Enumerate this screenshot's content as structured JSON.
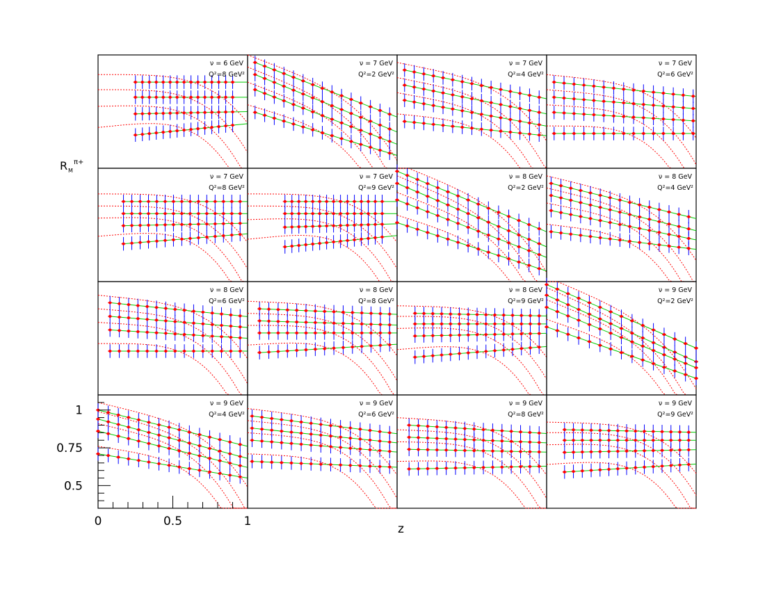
{
  "figure": {
    "ylabel": "R",
    "ylabel_sub": "M",
    "ylabel_sup": "π+",
    "xlabel": "z",
    "x_ticks": [
      "0",
      "0.5",
      "1"
    ],
    "y_ticks": [
      "1",
      "0.75",
      "0.5"
    ],
    "colors": {
      "data_point": "#ff0000",
      "error_bar": "#0000ff",
      "fit_curve": "#00cc00",
      "model_curve": "#ff0000",
      "frame": "#000000"
    }
  },
  "chart_data": {
    "type": "scatter",
    "description_of_grid": "4x4 panels of hadron multiplicity ratio vs z, one panel per (nu, Q^2) bin; four data sets per panel with green fit lines and red dotted model curves",
    "xlim": [
      0,
      1
    ],
    "ylim": [
      0.35,
      1.1
    ],
    "panels": [
      {
        "nu": "ν = 6  GeV",
        "q2": "Q²=8  GeV²",
        "zmin": 0.25,
        "zmax": 0.9,
        "start": [
          0.92,
          0.82,
          0.71,
          0.57
        ],
        "slope": [
          0.0,
          0.0,
          0.02,
          0.1
        ]
      },
      {
        "nu": "ν = 7  GeV",
        "q2": "Q²=2  GeV²",
        "zmin": 0.05,
        "zmax": 0.95,
        "start": [
          1.05,
          0.97,
          0.87,
          0.72
        ],
        "slope": [
          -0.38,
          -0.4,
          -0.38,
          -0.3
        ]
      },
      {
        "nu": "ν = 7  GeV",
        "q2": "Q²=4  GeV²",
        "zmin": 0.05,
        "zmax": 0.95,
        "start": [
          1.0,
          0.9,
          0.8,
          0.66
        ],
        "slope": [
          -0.2,
          -0.2,
          -0.18,
          -0.1
        ]
      },
      {
        "nu": "ν = 7  GeV",
        "q2": "Q²=6  GeV²",
        "zmin": 0.05,
        "zmax": 0.98,
        "start": [
          0.92,
          0.82,
          0.72,
          0.58
        ],
        "slope": [
          -0.1,
          -0.08,
          -0.06,
          0.0
        ]
      },
      {
        "nu": "ν = 7  GeV",
        "q2": "Q²=8  GeV²",
        "zmin": 0.17,
        "zmax": 0.95,
        "start": [
          0.88,
          0.8,
          0.72,
          0.6
        ],
        "slope": [
          0.0,
          0.0,
          0.02,
          0.08
        ]
      },
      {
        "nu": "ν = 7  GeV",
        "q2": "Q²=9  GeV²",
        "zmin": 0.25,
        "zmax": 0.9,
        "start": [
          0.88,
          0.8,
          0.71,
          0.58
        ],
        "slope": [
          0.0,
          0.0,
          0.03,
          0.1
        ]
      },
      {
        "nu": "ν = 8  GeV",
        "q2": "Q²=2  GeV²",
        "zmin": 0.0,
        "zmax": 0.95,
        "start": [
          1.08,
          1.0,
          0.89,
          0.74
        ],
        "slope": [
          -0.4,
          -0.42,
          -0.38,
          -0.32
        ]
      },
      {
        "nu": "ν = 8  GeV",
        "q2": "Q²=4  GeV²",
        "zmin": 0.03,
        "zmax": 0.95,
        "start": [
          1.0,
          0.92,
          0.82,
          0.68
        ],
        "slope": [
          -0.24,
          -0.24,
          -0.2,
          -0.12
        ]
      },
      {
        "nu": "ν = 8  GeV",
        "q2": "Q²=6  GeV²",
        "zmin": 0.08,
        "zmax": 0.95,
        "start": [
          0.96,
          0.87,
          0.78,
          0.64
        ],
        "slope": [
          -0.1,
          -0.08,
          -0.06,
          0.0
        ]
      },
      {
        "nu": "ν = 8  GeV",
        "q2": "Q²=8  GeV²",
        "zmin": 0.08,
        "zmax": 0.95,
        "start": [
          0.92,
          0.84,
          0.76,
          0.63
        ],
        "slope": [
          -0.04,
          -0.03,
          0.0,
          0.06
        ]
      },
      {
        "nu": "ν = 8  GeV",
        "q2": "Q²=9  GeV²",
        "zmin": 0.12,
        "zmax": 0.95,
        "start": [
          0.89,
          0.82,
          0.74,
          0.6
        ],
        "slope": [
          -0.02,
          0.0,
          0.02,
          0.08
        ]
      },
      {
        "nu": "ν = 9  GeV",
        "q2": "Q²=2  GeV²",
        "zmin": 0.0,
        "zmax": 1.0,
        "start": [
          1.08,
          1.01,
          0.93,
          0.8
        ],
        "slope": [
          -0.42,
          -0.44,
          -0.4,
          -0.34
        ]
      },
      {
        "nu": "ν = 9  GeV",
        "q2": "Q²=4  GeV²",
        "zmin": 0.0,
        "zmax": 0.95,
        "start": [
          1.0,
          0.94,
          0.86,
          0.71
        ],
        "slope": [
          -0.24,
          -0.26,
          -0.24,
          -0.16
        ]
      },
      {
        "nu": "ν = 9  GeV",
        "q2": "Q²=6  GeV²",
        "zmin": 0.03,
        "zmax": 0.95,
        "start": [
          0.96,
          0.88,
          0.8,
          0.66
        ],
        "slope": [
          -0.12,
          -0.1,
          -0.08,
          -0.04
        ]
      },
      {
        "nu": "ν = 9  GeV",
        "q2": "Q²=8  GeV²",
        "zmin": 0.08,
        "zmax": 0.95,
        "start": [
          0.9,
          0.82,
          0.74,
          0.61
        ],
        "slope": [
          -0.06,
          -0.04,
          -0.02,
          0.02
        ]
      },
      {
        "nu": "ν = 9  GeV",
        "q2": "Q²=9  GeV²",
        "zmin": 0.12,
        "zmax": 0.95,
        "start": [
          0.87,
          0.8,
          0.72,
          0.59
        ],
        "slope": [
          -0.02,
          0.0,
          0.02,
          0.06
        ]
      }
    ]
  }
}
